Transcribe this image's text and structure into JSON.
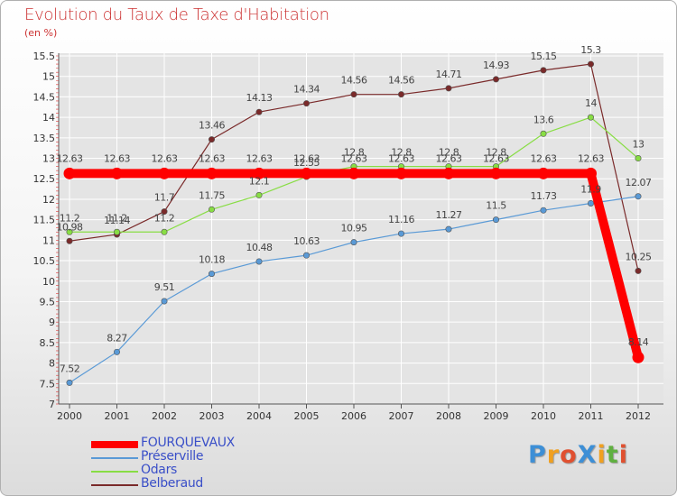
{
  "title": "Evolution du Taux de Taxe d'Habitation",
  "subtitle": "(en %)",
  "brand": "ProXiti",
  "colors": {
    "title": "#cc3333",
    "axis": "#555555",
    "grid": "#ffffff",
    "legend_text": "#3a4fc8",
    "brand_letters": [
      "#3d8fd6",
      "#f0a020",
      "#e05030",
      "#3d8fd6",
      "#f0a020",
      "#60b040",
      "#e05030"
    ]
  },
  "chart_data": {
    "type": "line",
    "title": "Evolution du Taux de Taxe d'Habitation",
    "ylabel": "(en %)",
    "xlabel": "",
    "ylim": [
      7,
      15.5
    ],
    "yticks": [
      "7",
      "7.5",
      "8",
      "8.5",
      "9",
      "9.5",
      "10",
      "10.5",
      "11",
      "11.5",
      "12",
      "12.5",
      "13",
      "13.5",
      "14",
      "14.5",
      "15",
      "15.5"
    ],
    "categories": [
      "2000",
      "2001",
      "2002",
      "2003",
      "2004",
      "2005",
      "2006",
      "2007",
      "2008",
      "2009",
      "2010",
      "2011",
      "2012"
    ],
    "grid": true,
    "legend_position": "bottom-left",
    "series": [
      {
        "name": "FOURQUEVAUX",
        "color": "#ff0000",
        "values": [
          12.63,
          12.63,
          12.63,
          12.63,
          12.63,
          12.63,
          12.63,
          12.63,
          12.63,
          12.63,
          12.63,
          12.63,
          8.14
        ],
        "labels": [
          "12.63",
          "12.63",
          "12.63",
          "12.63",
          "12.63",
          "12.63",
          "12.63",
          "12.63",
          "12.63",
          "12.63",
          "12.63",
          "12.63",
          "8.14"
        ]
      },
      {
        "name": "Préserville",
        "color": "#5a9ad6",
        "values": [
          7.52,
          8.27,
          9.51,
          10.18,
          10.48,
          10.63,
          10.95,
          11.16,
          11.27,
          11.5,
          11.73,
          11.9,
          12.07
        ],
        "labels": [
          "7.52",
          "8.27",
          "9.51",
          "10.18",
          "10.48",
          "10.63",
          "10.95",
          "11.16",
          "11.27",
          "11.5",
          "11.73",
          "11.9",
          "12.07"
        ]
      },
      {
        "name": "Odars",
        "color": "#88dd44",
        "values": [
          11.2,
          11.2,
          11.2,
          11.75,
          12.1,
          12.55,
          12.8,
          12.8,
          12.8,
          12.8,
          13.6,
          14,
          13
        ],
        "labels": [
          "11.2",
          "11.2",
          "11.2",
          "11.75",
          "12.1",
          "12.55",
          "12.8",
          "12.8",
          "12.8",
          "12.8",
          "13.6",
          "14",
          "13"
        ]
      },
      {
        "name": "Belberaud",
        "color": "#7a2a2a",
        "values": [
          10.98,
          11.14,
          11.7,
          13.46,
          14.13,
          14.34,
          14.56,
          14.56,
          14.71,
          14.93,
          15.15,
          15.3,
          10.25
        ],
        "labels": [
          "10.98",
          "11.14",
          "11.7",
          "13.46",
          "14.13",
          "14.34",
          "14.56",
          "14.56",
          "14.71",
          "14.93",
          "15.15",
          "15.3",
          "10.25"
        ]
      }
    ]
  }
}
